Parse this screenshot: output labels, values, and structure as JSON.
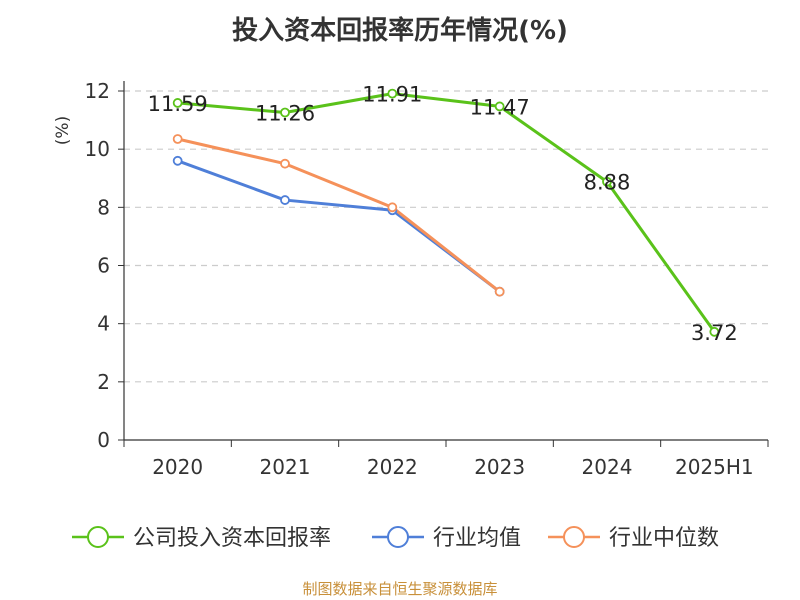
{
  "chart_data": {
    "type": "line",
    "title": "投入资本回报率历年情况(%)",
    "ylabel": "(%)",
    "categories": [
      "2020",
      "2021",
      "2022",
      "2023",
      "2024",
      "2025H1"
    ],
    "ylim": [
      0,
      12
    ],
    "yticks": [
      0,
      2,
      4,
      6,
      8,
      10,
      12
    ],
    "grid": "horizontal-dashed",
    "legend_position": "bottom",
    "series": [
      {
        "name": "公司投入资本回报率",
        "color": "#5ac21a",
        "values": [
          11.59,
          11.26,
          11.91,
          11.47,
          8.88,
          3.72
        ],
        "labels": [
          "11.59",
          "11.26",
          "11.91",
          "11.47",
          "8.88",
          "3.72"
        ]
      },
      {
        "name": "行业均值",
        "color": "#4f7fd8",
        "values": [
          9.6,
          8.25,
          7.9,
          5.1,
          null,
          null
        ]
      },
      {
        "name": "行业中位数",
        "color": "#f5915a",
        "values": [
          10.35,
          9.5,
          8.0,
          5.1,
          null,
          null
        ]
      }
    ]
  },
  "colors": {
    "ylabel": "#dd2222",
    "axis": "#333333",
    "grid": "#cccccc",
    "source": "#c8903a"
  },
  "source_text": "制图数据来自恒生聚源数据库"
}
